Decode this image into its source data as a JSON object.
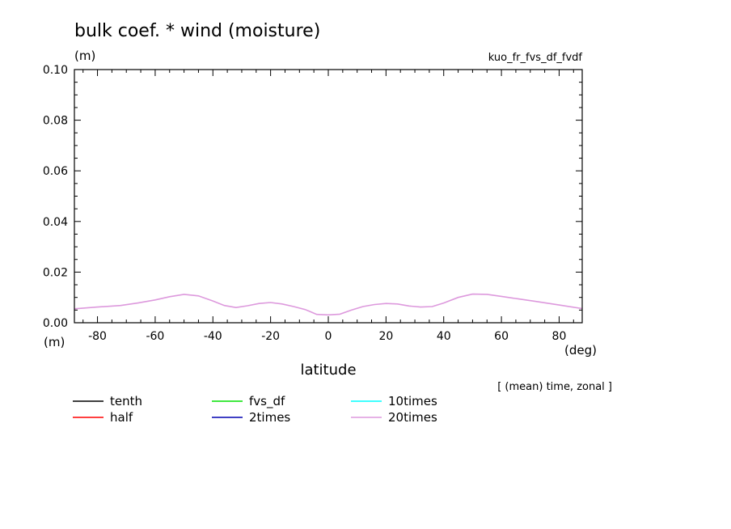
{
  "chart_data": {
    "type": "line",
    "title": "bulk coef. * wind (moisture)",
    "y_unit": "(m)",
    "x_unit_left": "(m)",
    "x_unit": "(deg)",
    "run_name": "kuo_fr_fvs_df_fvdf",
    "note": "[ (mean) time, zonal ]",
    "xlabel": "latitude",
    "ylabel": "",
    "xlim": [
      -88,
      88
    ],
    "ylim": [
      0.0,
      0.1
    ],
    "x_ticks": [
      -80,
      -60,
      -40,
      -20,
      0,
      20,
      40,
      60,
      80
    ],
    "x_tick_labels": [
      "-80",
      "-60",
      "-40",
      "-20",
      "0",
      "20",
      "40",
      "60",
      "80"
    ],
    "y_ticks": [
      0.0,
      0.02,
      0.04,
      0.06,
      0.08,
      0.1
    ],
    "y_tick_labels": [
      "0.00",
      "0.02",
      "0.04",
      "0.06",
      "0.08",
      "0.10"
    ],
    "grid": false,
    "legend_position": "bottom-left",
    "x": [
      -88,
      -80,
      -72,
      -66,
      -60,
      -55,
      -50,
      -45,
      -40,
      -36,
      -32,
      -28,
      -24,
      -20,
      -16,
      -12,
      -8,
      -4,
      0,
      4,
      8,
      12,
      16,
      20,
      24,
      28,
      32,
      36,
      40,
      45,
      50,
      55,
      60,
      66,
      72,
      80,
      88
    ],
    "series": [
      {
        "name": "tenth",
        "color": "#000000",
        "values": null
      },
      {
        "name": "half",
        "color": "#ff0000",
        "values": null
      },
      {
        "name": "fvs_df",
        "color": "#00e000",
        "values": null
      },
      {
        "name": "2times",
        "color": "#0000b0",
        "values": null
      },
      {
        "name": "10times",
        "color": "#00ffff",
        "values": null
      },
      {
        "name": "20times",
        "color": "#dd99dd",
        "values": [
          0.0055,
          0.0062,
          0.0068,
          0.0078,
          0.009,
          0.0103,
          0.0112,
          0.0106,
          0.0086,
          0.0068,
          0.006,
          0.0067,
          0.0076,
          0.008,
          0.0074,
          0.0064,
          0.0052,
          0.0033,
          0.0031,
          0.0034,
          0.005,
          0.0064,
          0.0072,
          0.0076,
          0.0074,
          0.0066,
          0.0062,
          0.0064,
          0.0078,
          0.01,
          0.0113,
          0.0112,
          0.0104,
          0.0094,
          0.0084,
          0.007,
          0.0056
        ]
      }
    ]
  }
}
